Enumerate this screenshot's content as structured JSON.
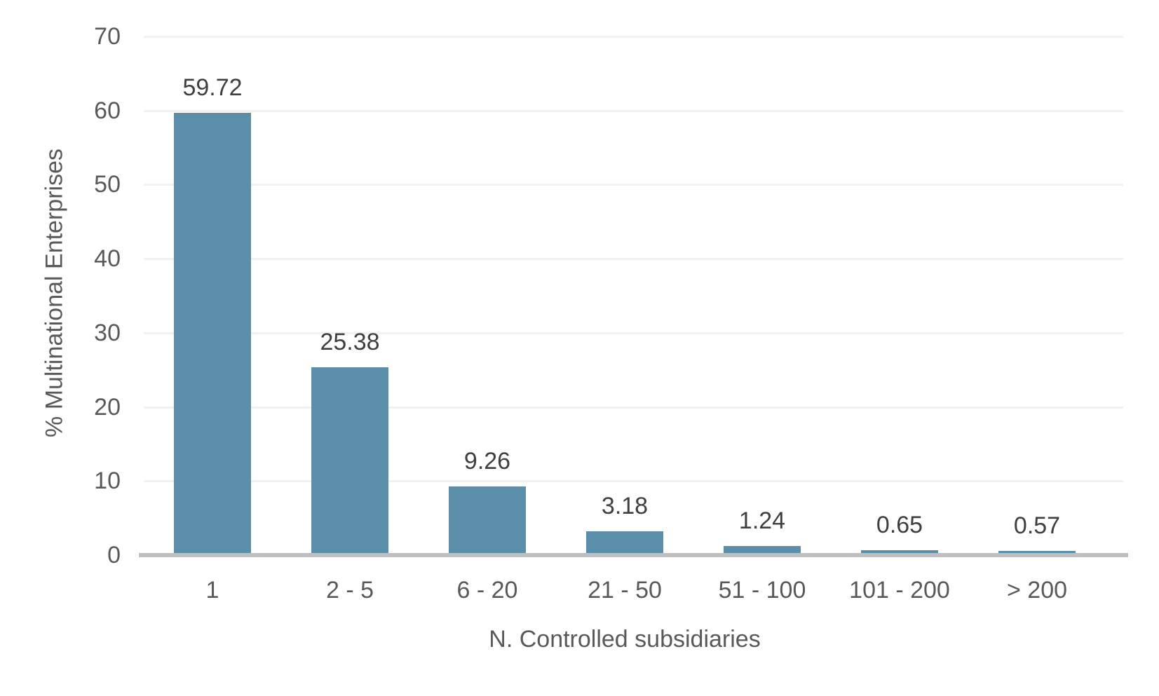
{
  "chart_data": {
    "type": "bar",
    "categories": [
      "1",
      "2 - 5",
      "6 - 20",
      "21 - 50",
      "51 - 100",
      "101 - 200",
      "> 200"
    ],
    "values": [
      59.72,
      25.38,
      9.26,
      3.18,
      1.24,
      0.65,
      0.57
    ],
    "data_labels": [
      "59.72",
      "25.38",
      "9.26",
      "3.18",
      "1.24",
      "0.65",
      "0.57"
    ],
    "title": "",
    "xlabel": "N. Controlled subsidiaries",
    "ylabel": "% Multinational Enterprises",
    "ylim": [
      0,
      70
    ],
    "yticks": [
      0,
      10,
      20,
      30,
      40,
      50,
      60,
      70
    ],
    "grid": "horizontal",
    "legend": "none",
    "colors": {
      "bar_fill": "#5b8ea9",
      "gridline": "#f1f1f1",
      "axis_line": "#bfbfbf",
      "tick_label": "#595959",
      "data_label": "#3f3f3f",
      "background": "#ffffff"
    }
  }
}
